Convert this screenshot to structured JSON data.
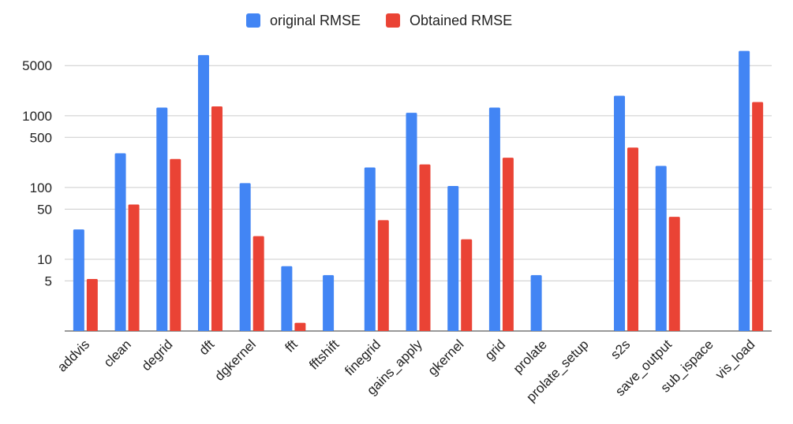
{
  "chart_data": {
    "type": "bar",
    "title": "",
    "xlabel": "",
    "ylabel": "",
    "yscale": "log",
    "ylim": [
      1,
      9000
    ],
    "yticks": [
      5,
      10,
      50,
      100,
      500,
      1000,
      5000
    ],
    "grid": true,
    "legend_position": "top-center",
    "categories": [
      "addvis",
      "clean",
      "degrid",
      "dft",
      "dgkernel",
      "fft",
      "fftshift",
      "finegrid",
      "gains_apply",
      "gkernel",
      "grid",
      "prolate",
      "prolate_setup",
      "s2s",
      "save_output",
      "sub_ispace",
      "vis_load"
    ],
    "series": [
      {
        "name": "original RMSE",
        "color": "#4285F4",
        "values": [
          26,
          300,
          1300,
          7000,
          115,
          8,
          6,
          190,
          1100,
          105,
          1300,
          6,
          null,
          1900,
          200,
          null,
          8000
        ]
      },
      {
        "name": "Obtained RMSE",
        "color": "#EA4335",
        "values": [
          5.3,
          58,
          250,
          1350,
          21,
          1.3,
          null,
          35,
          210,
          19,
          260,
          null,
          null,
          360,
          39,
          null,
          1550
        ]
      }
    ]
  }
}
